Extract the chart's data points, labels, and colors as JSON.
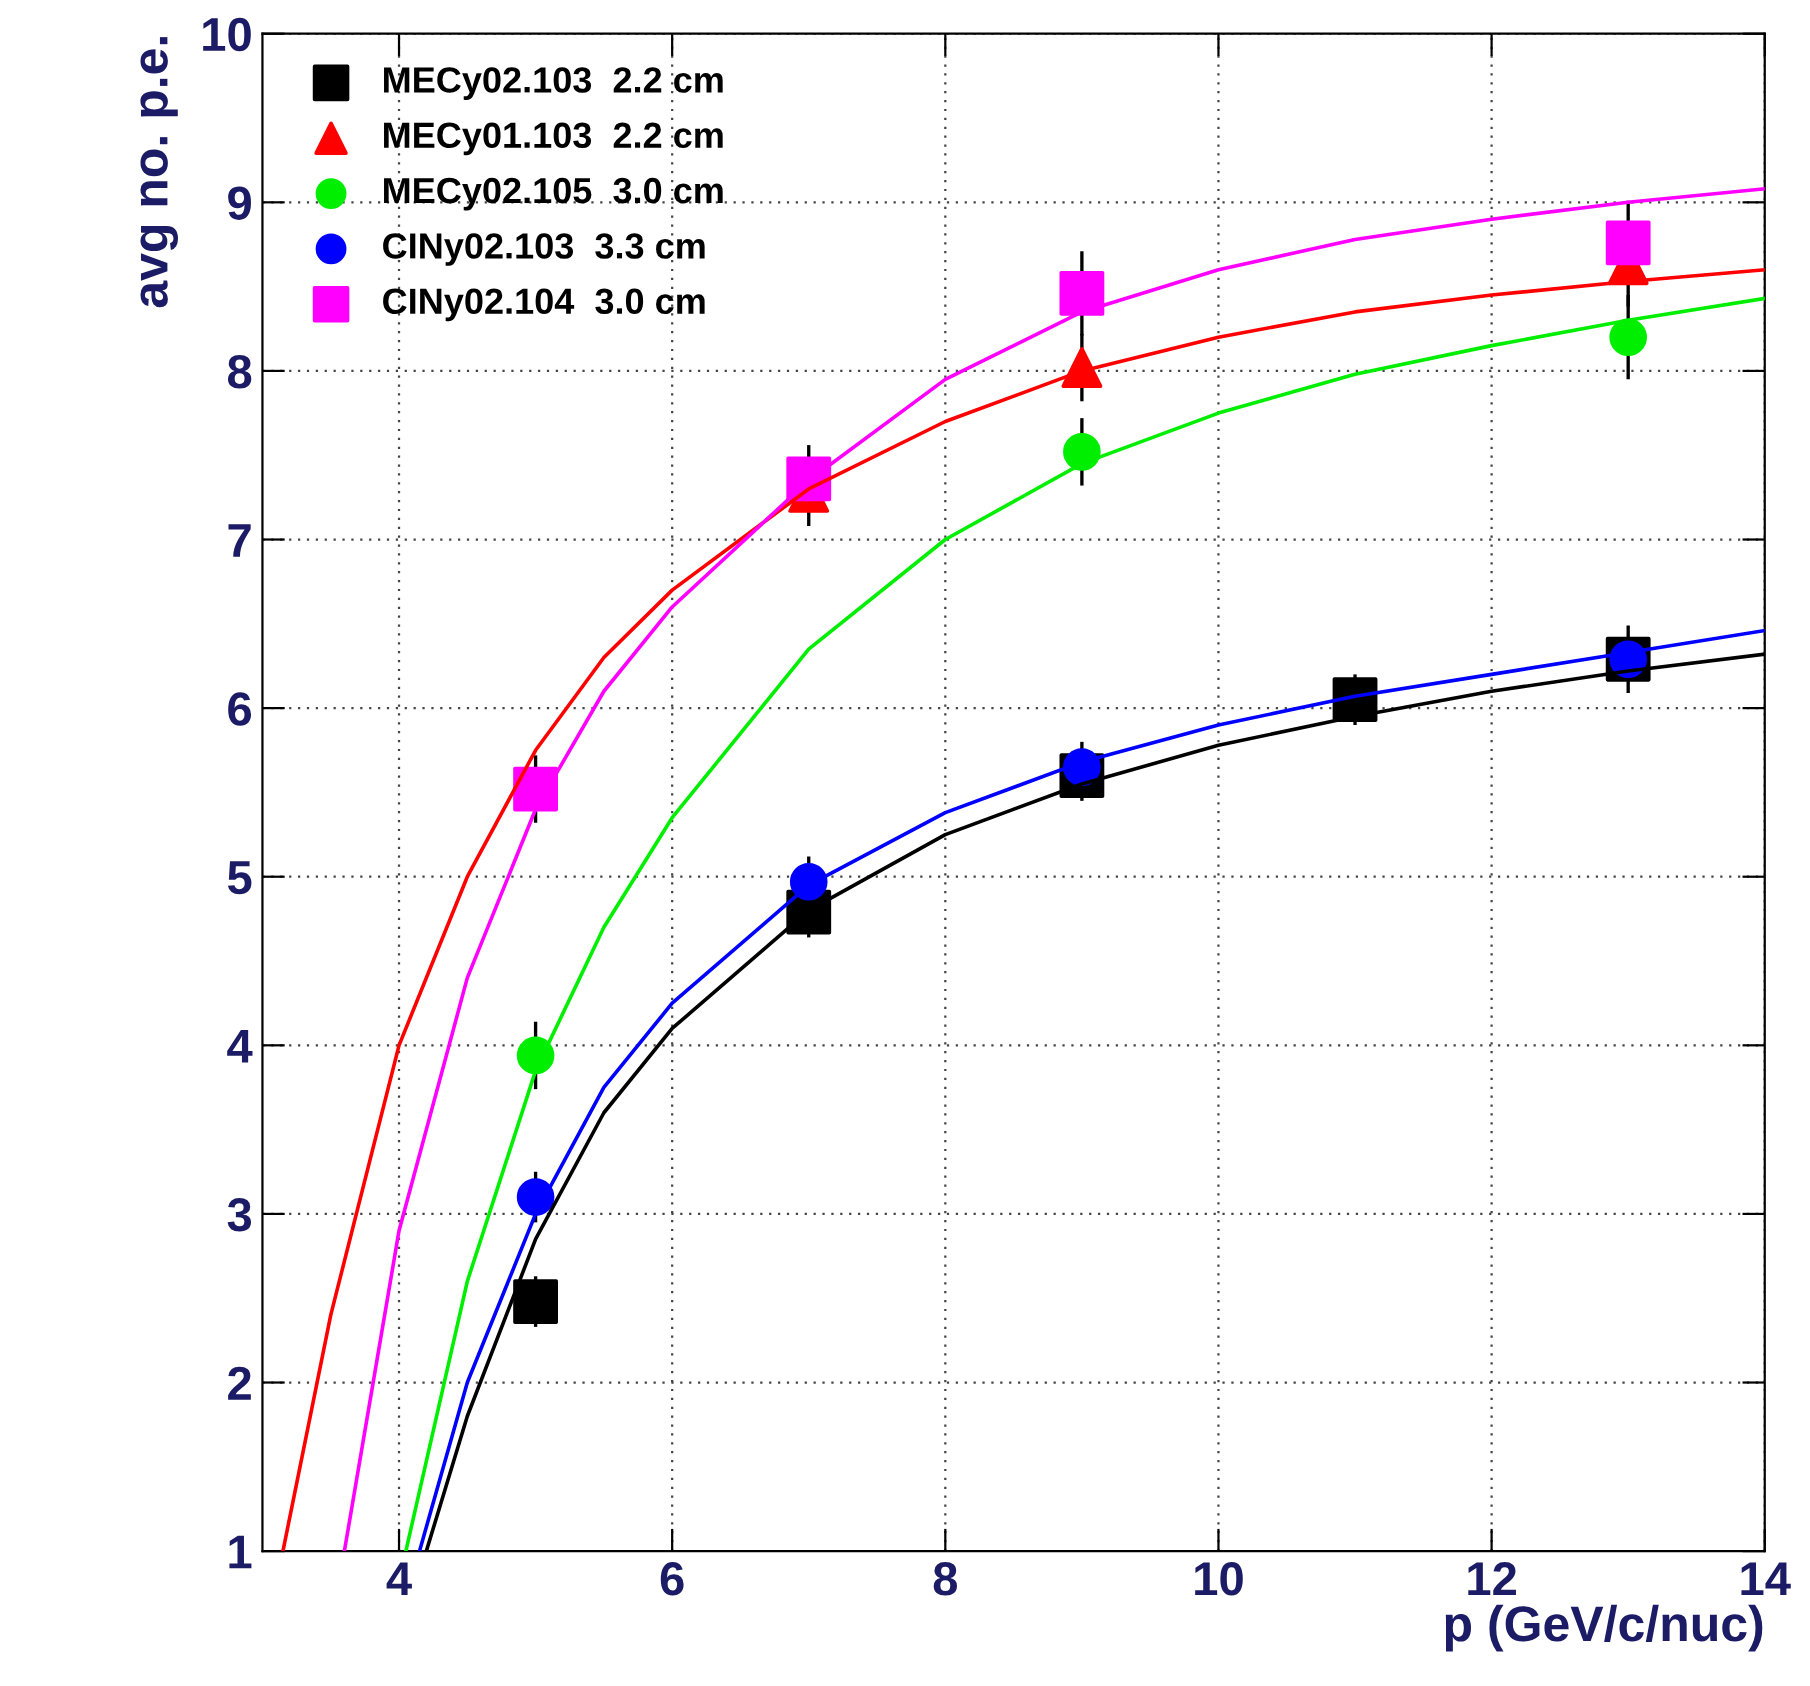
{
  "chart_data": {
    "type": "scatter",
    "xlabel": "p (GeV/c/nuc)",
    "ylabel": "avg no. p.e.",
    "xlim": [
      3,
      14
    ],
    "xticks": [
      4,
      6,
      8,
      10,
      12,
      14
    ],
    "ylim": [
      1,
      10
    ],
    "yticks": [
      1,
      2,
      3,
      4,
      5,
      6,
      7,
      8,
      9,
      10
    ],
    "grid": true,
    "legend": "top left",
    "series": [
      {
        "name": "MECy02.103  2.2 cm",
        "marker": "square",
        "color": "#000000",
        "x": [
          5,
          7,
          9,
          11,
          13
        ],
        "values": [
          2.48,
          4.79,
          5.6,
          6.05,
          6.29
        ],
        "errors": [
          0.15,
          0.15,
          0.15,
          0.15,
          null
        ]
      },
      {
        "name": "MECy01.103  2.2 cm",
        "marker": "triangle",
        "color": "#ff0000",
        "x": [
          7,
          9,
          13
        ],
        "values": [
          7.28,
          8.02,
          8.63
        ],
        "errors": [
          0.2,
          0.2,
          0.25
        ]
      },
      {
        "name": "MECy02.105  3.0 cm",
        "marker": "circle",
        "color": "#00ee00",
        "x": [
          5,
          9,
          13
        ],
        "values": [
          3.94,
          7.52,
          8.2
        ],
        "errors": [
          0.2,
          0.2,
          0.25
        ]
      },
      {
        "name": "CINy02.103  3.3 cm",
        "marker": "circle",
        "color": "#0000ff",
        "x": [
          5,
          7,
          9,
          13
        ],
        "values": [
          3.1,
          4.97,
          5.65,
          6.29
        ],
        "errors": [
          0.15,
          0.15,
          0.15,
          0.2
        ]
      },
      {
        "name": "CINy02.104  3.0 cm",
        "marker": "square",
        "color": "#ff00ff",
        "x": [
          5,
          7,
          9,
          13
        ],
        "values": [
          5.52,
          7.36,
          8.46,
          8.76
        ],
        "errors": [
          0.2,
          0.2,
          0.25,
          0.25
        ]
      },
      {
        "type": "line",
        "color": "#000000",
        "x": [
          4.2,
          4.5,
          5,
          5.5,
          6,
          7,
          8,
          9,
          10,
          11,
          12,
          13,
          14
        ],
        "values": [
          1,
          1.8,
          2.85,
          3.6,
          4.1,
          4.8,
          5.25,
          5.55,
          5.78,
          5.95,
          6.1,
          6.22,
          6.32
        ]
      },
      {
        "type": "line",
        "color": "#ff0000",
        "x": [
          3.15,
          3.5,
          4,
          4.5,
          5,
          5.5,
          6,
          7,
          8,
          9,
          10,
          11,
          12,
          13,
          14
        ],
        "values": [
          1,
          2.4,
          4.0,
          5.0,
          5.75,
          6.3,
          6.7,
          7.3,
          7.7,
          8.0,
          8.2,
          8.35,
          8.45,
          8.53,
          8.6
        ]
      },
      {
        "type": "line",
        "color": "#00ee00",
        "x": [
          4.05,
          4.5,
          5,
          5.5,
          6,
          7,
          8,
          9,
          10,
          11,
          12,
          13,
          14
        ],
        "values": [
          1,
          2.6,
          3.85,
          4.7,
          5.35,
          6.35,
          7.0,
          7.45,
          7.75,
          7.98,
          8.15,
          8.3,
          8.43
        ]
      },
      {
        "type": "line",
        "color": "#0000ff",
        "x": [
          4.15,
          4.5,
          5,
          5.5,
          6,
          7,
          8,
          9,
          10,
          11,
          12,
          13,
          14
        ],
        "values": [
          1,
          2.0,
          3.0,
          3.75,
          4.25,
          4.95,
          5.38,
          5.68,
          5.9,
          6.07,
          6.2,
          6.33,
          6.46
        ]
      },
      {
        "type": "line",
        "color": "#ff00ff",
        "x": [
          3.6,
          4,
          4.5,
          5,
          5.5,
          6,
          7,
          8,
          9,
          10,
          11,
          12,
          13,
          14
        ],
        "values": [
          1,
          2.9,
          4.4,
          5.4,
          6.1,
          6.6,
          7.35,
          7.95,
          8.35,
          8.6,
          8.78,
          8.9,
          9.0,
          9.08
        ]
      }
    ]
  }
}
